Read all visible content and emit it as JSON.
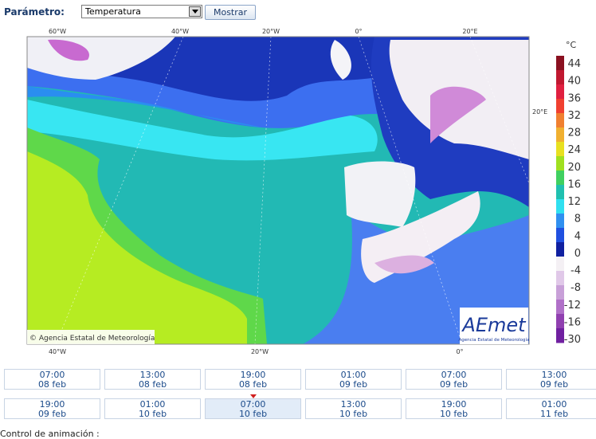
{
  "form": {
    "label": "Parámetro:",
    "select": "Temperatura",
    "button": "Mostrar"
  },
  "map": {
    "top_labels": [
      "60°W",
      "40°W",
      "20°W",
      "0°",
      "20°E"
    ],
    "bottom_labels": [
      "40°W",
      "20°W",
      "0°"
    ],
    "right_label": "20°E",
    "copyright": "© Agencia Estatal de Meteorología",
    "logo": {
      "name": "AEmet",
      "subtitle": "Agencia Estatal de Meteorología"
    }
  },
  "legend": {
    "unit": "°C",
    "labels": [
      "44",
      "40",
      "36",
      "32",
      "28",
      "24",
      "20",
      "16",
      "12",
      "8",
      "4",
      "0",
      "-4",
      "-8",
      "-12",
      "-16",
      "-30"
    ]
  },
  "times": [
    {
      "time": "07:00",
      "date": "08 feb"
    },
    {
      "time": "13:00",
      "date": "08 feb"
    },
    {
      "time": "19:00",
      "date": "08 feb"
    },
    {
      "time": "01:00",
      "date": "09 feb"
    },
    {
      "time": "07:00",
      "date": "09 feb"
    },
    {
      "time": "13:00",
      "date": "09 feb"
    },
    {
      "time": "19:00",
      "date": "09 feb"
    },
    {
      "time": "01:00",
      "date": "10 feb"
    },
    {
      "time": "07:00",
      "date": "10 feb"
    },
    {
      "time": "13:00",
      "date": "10 feb"
    },
    {
      "time": "19:00",
      "date": "10 feb"
    },
    {
      "time": "01:00",
      "date": "11 feb"
    }
  ],
  "footer": "Control de animación :"
}
